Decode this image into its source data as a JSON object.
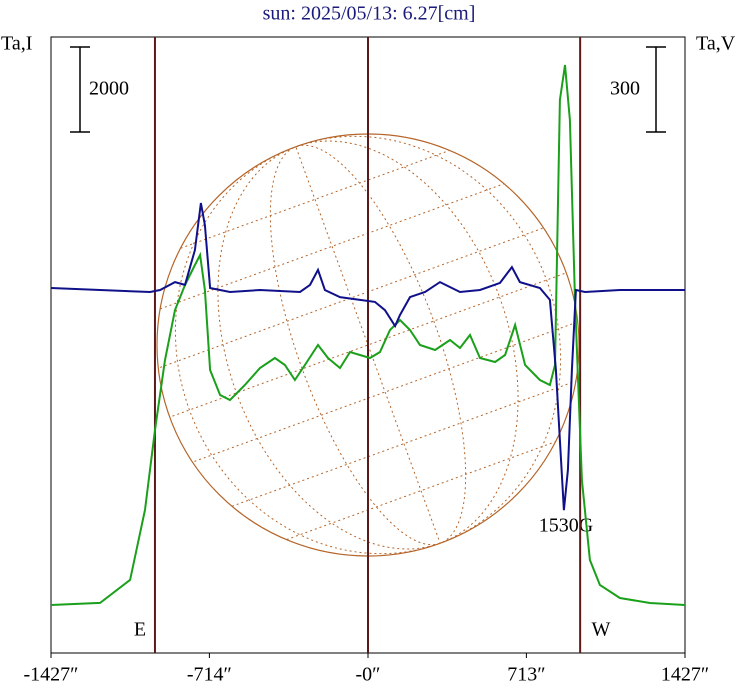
{
  "chart_data": {
    "type": "line",
    "title": "sun: 2025/05/13: 6.27[cm]",
    "ylabel": "Ta,I",
    "y2label": "Ta,V",
    "xlim": [
      -1427,
      1427
    ],
    "xticks": [
      {
        "value": -1427,
        "label": "-1427″"
      },
      {
        "value": -714,
        "label": "-714″"
      },
      {
        "value": 0,
        "label": "-0″"
      },
      {
        "value": 713,
        "label": "713″"
      },
      {
        "value": 1427,
        "label": "1427″"
      }
    ],
    "ylim": [
      -1130,
      13365
    ],
    "y2lim": [
      -1281,
      893
    ],
    "scale_bar_i": 2000,
    "scale_bar_v": 300,
    "vlines": [
      -959,
      0,
      955
    ],
    "annotations": [
      "E",
      "W",
      "1530G"
    ],
    "series": [
      {
        "color": "#1aa01a",
        "x": [
          -1427,
          -1206,
          -1071,
          -1004,
          -959,
          -914,
          -869,
          -824,
          -779,
          -756,
          -734,
          -711,
          -666,
          -621,
          -554,
          -486,
          -419,
          -374,
          -329,
          -284,
          -225,
          -180,
          -126,
          -81,
          -36,
          9,
          54,
          99,
          144,
          189,
          234,
          302,
          369,
          414,
          459,
          504,
          572,
          617,
          662,
          707,
          774,
          819,
          842,
          864,
          887,
          909,
          932,
          963,
          999,
          1044,
          1134,
          1269,
          1427
        ],
        "values": [
          0,
          50,
          590,
          2240,
          4120,
          5765,
          6941,
          7530,
          8000,
          8236,
          7412,
          5530,
          4941,
          4824,
          5177,
          5577,
          5812,
          5647,
          5294,
          5647,
          6118,
          5812,
          5577,
          5953,
          5883,
          5812,
          5953,
          6471,
          6706,
          6471,
          6118,
          6000,
          6236,
          6047,
          6353,
          5812,
          5718,
          5883,
          6588,
          5647,
          5294,
          5177,
          5647,
          11883,
          12706,
          11413,
          7177,
          2941,
          1059,
          471,
          165,
          47,
          0
        ]
      },
      {
        "color": "#10108a",
        "axis": "y2",
        "x": [
          -1427,
          -1206,
          -981,
          -936,
          -869,
          -824,
          -779,
          -752,
          -734,
          -711,
          -621,
          -486,
          -306,
          -261,
          -225,
          -194,
          -126,
          -36,
          31,
          76,
          122,
          144,
          189,
          257,
          324,
          414,
          504,
          594,
          648,
          684,
          774,
          819,
          846,
          864,
          882,
          900,
          918,
          936,
          977,
          1134,
          1427
        ],
        "values": [
          7,
          0,
          -7,
          0,
          28,
          18,
          141,
          307,
          229,
          7,
          -7,
          0,
          -7,
          18,
          71,
          0,
          -25,
          -35,
          -42,
          -71,
          -127,
          -88,
          -25,
          -7,
          28,
          -7,
          0,
          25,
          81,
          28,
          7,
          -35,
          -282,
          -530,
          -777,
          -635,
          -282,
          0,
          -7,
          0,
          0
        ]
      }
    ]
  }
}
